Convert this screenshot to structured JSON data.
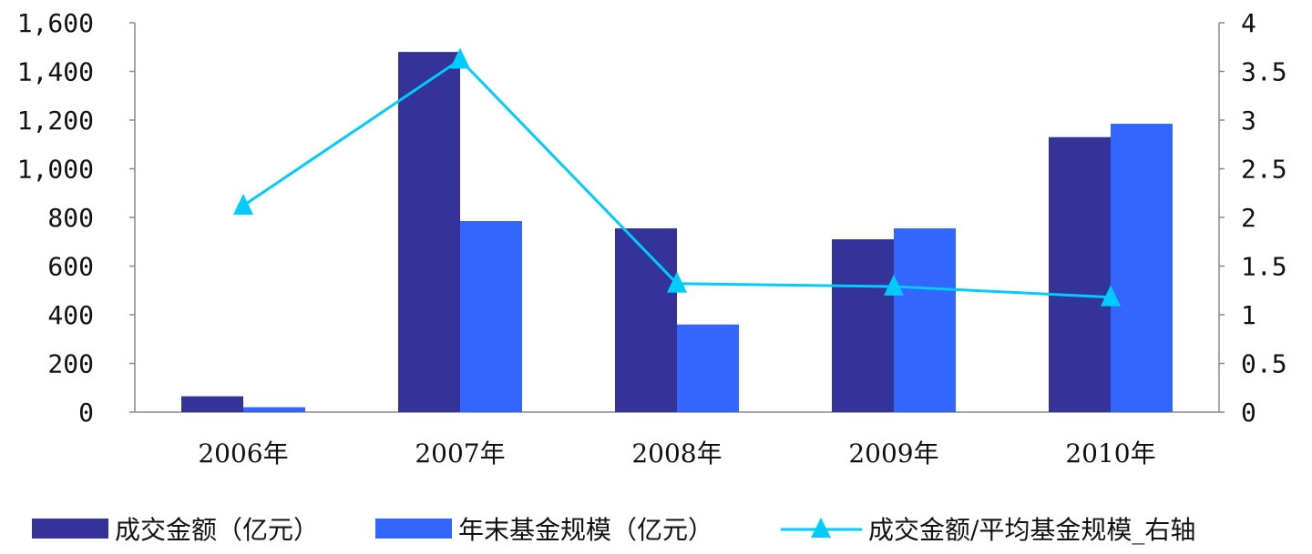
{
  "chart_data": {
    "type": "bar",
    "categories": [
      "2006年",
      "2007年",
      "2008年",
      "2009年",
      "2010年"
    ],
    "series": [
      {
        "name": "成交金额（亿元）",
        "type": "bar",
        "axis": "left",
        "color": "#333399",
        "values": [
          65,
          1480,
          755,
          710,
          1130
        ]
      },
      {
        "name": "年末基金规模（亿元）",
        "type": "bar",
        "axis": "left",
        "color": "#3366FF",
        "values": [
          20,
          785,
          360,
          755,
          1185
        ]
      },
      {
        "name": "成交金额/平均基金规模_右轴",
        "type": "line",
        "axis": "right",
        "marker": "triangle",
        "color": "#00CCFF",
        "values": [
          2.12,
          3.62,
          1.32,
          1.29,
          1.18
        ]
      }
    ],
    "y_left": {
      "ylim": [
        0,
        1600
      ],
      "ticks": [
        "0",
        "200",
        "400",
        "600",
        "800",
        "1,000",
        "1,200",
        "1,400",
        "1,600"
      ]
    },
    "y_right": {
      "ylim": [
        0,
        4
      ],
      "ticks": [
        "0",
        "0.5",
        "1",
        "1.5",
        "2",
        "2.5",
        "3",
        "3.5",
        "4"
      ]
    },
    "legend_position": "bottom",
    "grid": false
  }
}
